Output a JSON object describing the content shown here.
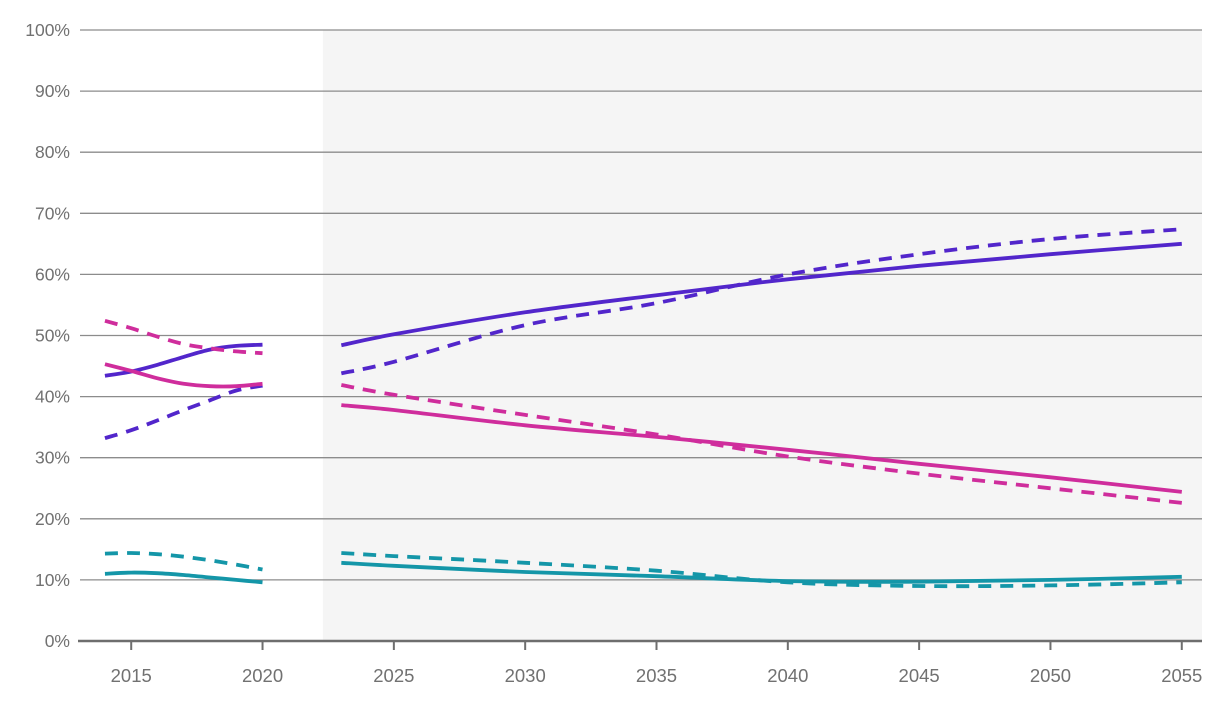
{
  "chart_data": {
    "type": "line",
    "title": "",
    "xlabel": "",
    "ylabel": "",
    "grid": true,
    "legend": "none",
    "y_axis": {
      "unit": "%",
      "ticks": [
        0,
        10,
        20,
        30,
        40,
        50,
        60,
        70,
        80,
        90,
        100
      ],
      "tick_labels": [
        "0%",
        "10%",
        "20%",
        "30%",
        "40%",
        "50%",
        "60%",
        "70%",
        "80%",
        "90%",
        "100%"
      ],
      "range": [
        0,
        100
      ]
    },
    "x_axis": {
      "ticks": [
        2015,
        2020,
        2025,
        2030,
        2035,
        2040,
        2045,
        2050,
        2055
      ],
      "tick_labels": [
        "2015",
        "2020",
        "2025",
        "2030",
        "2035",
        "2040",
        "2045",
        "2050",
        "2055"
      ],
      "range": [
        2013.05,
        2055.77
      ]
    },
    "forecast_region": {
      "start_year": 2022.3,
      "end_year": 2055.77,
      "fill": "#f5f5f5"
    },
    "colors": {
      "purple": "#5226cb",
      "magenta": "#cf2d9c",
      "teal": "#1496a8",
      "gridline": "#8c8c8c",
      "axis": "#6e6e6e",
      "label": "#717171"
    },
    "series": [
      {
        "name": "purple-solid-history",
        "color_key": "purple",
        "dashed": false,
        "segment": "history",
        "x": [
          2014,
          2015,
          2016,
          2017,
          2018,
          2019,
          2020
        ],
        "y": [
          43.4,
          44.1,
          45.2,
          46.5,
          47.7,
          48.3,
          48.5
        ]
      },
      {
        "name": "purple-solid-forecast",
        "color_key": "purple",
        "dashed": false,
        "segment": "forecast",
        "x": [
          2023,
          2025,
          2030,
          2035,
          2040,
          2045,
          2050,
          2055
        ],
        "y": [
          48.4,
          50.2,
          53.8,
          56.6,
          59.2,
          61.4,
          63.3,
          65.0
        ]
      },
      {
        "name": "purple-dashed-history",
        "color_key": "purple",
        "dashed": true,
        "segment": "history",
        "x": [
          2014,
          2015,
          2016,
          2017,
          2018,
          2019,
          2020
        ],
        "y": [
          33.2,
          34.5,
          36.1,
          37.8,
          39.4,
          41.0,
          41.8
        ]
      },
      {
        "name": "purple-dashed-forecast",
        "color_key": "purple",
        "dashed": true,
        "segment": "forecast",
        "x": [
          2023,
          2025,
          2030,
          2035,
          2040,
          2045,
          2050,
          2055
        ],
        "y": [
          43.8,
          45.7,
          51.7,
          55.3,
          60.0,
          63.3,
          65.8,
          67.4
        ]
      },
      {
        "name": "magenta-solid-history",
        "color_key": "magenta",
        "dashed": false,
        "segment": "history",
        "x": [
          2014,
          2015,
          2016,
          2017,
          2018,
          2019,
          2020
        ],
        "y": [
          45.3,
          44.2,
          43.0,
          42.1,
          41.7,
          41.7,
          42.1
        ]
      },
      {
        "name": "magenta-solid-forecast",
        "color_key": "magenta",
        "dashed": false,
        "segment": "forecast",
        "x": [
          2023,
          2025,
          2030,
          2035,
          2040,
          2045,
          2050,
          2055
        ],
        "y": [
          38.6,
          37.8,
          35.3,
          33.4,
          31.3,
          29.0,
          26.8,
          24.4
        ]
      },
      {
        "name": "magenta-dashed-history",
        "color_key": "magenta",
        "dashed": true,
        "segment": "history",
        "x": [
          2014,
          2015,
          2016,
          2017,
          2018,
          2019,
          2020
        ],
        "y": [
          52.4,
          51.2,
          49.8,
          48.6,
          47.9,
          47.4,
          47.1
        ]
      },
      {
        "name": "magenta-dashed-forecast",
        "color_key": "magenta",
        "dashed": true,
        "segment": "forecast",
        "x": [
          2023,
          2025,
          2030,
          2035,
          2040,
          2045,
          2050,
          2055
        ],
        "y": [
          41.9,
          40.3,
          37.0,
          33.8,
          30.2,
          27.4,
          25.0,
          22.6
        ]
      },
      {
        "name": "teal-solid-history",
        "color_key": "teal",
        "dashed": false,
        "segment": "history",
        "x": [
          2014,
          2015,
          2016,
          2017,
          2018,
          2019,
          2020
        ],
        "y": [
          11.0,
          11.2,
          11.1,
          10.8,
          10.4,
          10.0,
          9.6
        ]
      },
      {
        "name": "teal-solid-forecast",
        "color_key": "teal",
        "dashed": false,
        "segment": "forecast",
        "x": [
          2023,
          2025,
          2030,
          2035,
          2040,
          2045,
          2050,
          2055
        ],
        "y": [
          12.8,
          12.3,
          11.3,
          10.6,
          9.8,
          9.7,
          10.0,
          10.5
        ]
      },
      {
        "name": "teal-dashed-history",
        "color_key": "teal",
        "dashed": true,
        "segment": "history",
        "x": [
          2014,
          2015,
          2016,
          2017,
          2018,
          2019,
          2020
        ],
        "y": [
          14.3,
          14.4,
          14.2,
          13.8,
          13.2,
          12.5,
          11.7
        ]
      },
      {
        "name": "teal-dashed-forecast",
        "color_key": "teal",
        "dashed": true,
        "segment": "forecast",
        "x": [
          2023,
          2025,
          2030,
          2035,
          2040,
          2045,
          2050,
          2055
        ],
        "y": [
          14.4,
          13.9,
          12.8,
          11.5,
          9.6,
          9.0,
          9.1,
          9.6
        ]
      }
    ]
  }
}
